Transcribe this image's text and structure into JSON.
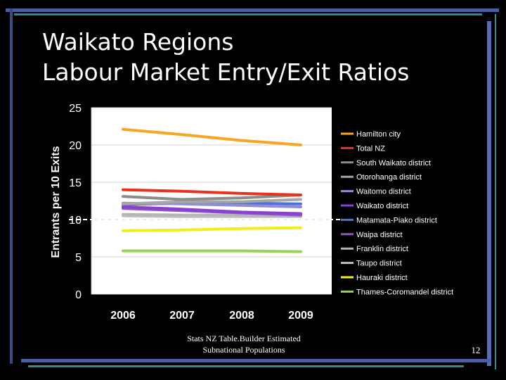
{
  "slide": {
    "title_line1": "Waikato Regions",
    "title_line2": "Labour Market Entry/Exit Ratios",
    "source_line1": "Stats NZ Table.Builder Estimated",
    "source_line2": "Subnational Populations",
    "page_number": "12"
  },
  "chart_data": {
    "type": "line",
    "title": "",
    "xlabel": "",
    "ylabel": "Entrants per 10 Exits",
    "categories": [
      "2006",
      "2007",
      "2008",
      "2009"
    ],
    "ylim": [
      0,
      25
    ],
    "yticks": [
      "0",
      "5",
      "10",
      "15",
      "20",
      "25"
    ],
    "grid": true,
    "legend_position": "right",
    "reference_line": {
      "value": 10,
      "style": "dashed",
      "color": "#ffffff"
    },
    "series": [
      {
        "name": "Hamilton city",
        "color": "#f6a623",
        "values": [
          22.1,
          21.4,
          20.6,
          20.0
        ]
      },
      {
        "name": "Total NZ",
        "color": "#e8321e",
        "values": [
          14.0,
          13.8,
          13.5,
          13.3
        ]
      },
      {
        "name": "South Waikato district",
        "color": "#8c8c8c",
        "values": [
          13.1,
          12.7,
          12.9,
          13.3
        ]
      },
      {
        "name": "Otorohanga district",
        "color": "#a6a6a6",
        "values": [
          12.1,
          12.4,
          12.4,
          12.7
        ]
      },
      {
        "name": "Waitomo district",
        "color": "#8f8fd0",
        "values": [
          12.2,
          12.1,
          11.9,
          11.7
        ]
      },
      {
        "name": "Waikato district",
        "color": "#8a3fd0",
        "values": [
          11.7,
          11.4,
          11.0,
          10.8
        ]
      },
      {
        "name": "Matamata-Piako district",
        "color": "#4f70d8",
        "values": [
          12.0,
          12.2,
          12.2,
          12.1
        ]
      },
      {
        "name": "Waipa district",
        "color": "#8a55c8",
        "values": [
          11.5,
          11.2,
          10.9,
          10.6
        ]
      },
      {
        "name": "Franklin district",
        "color": "#b5b5b5",
        "values": [
          10.7,
          10.6,
          10.6,
          10.5
        ]
      },
      {
        "name": "Taupo district",
        "color": "#c0c0c0",
        "values": [
          10.5,
          10.4,
          10.4,
          10.4
        ]
      },
      {
        "name": "Hauraki district",
        "color": "#f2ee1a",
        "values": [
          8.5,
          8.6,
          8.8,
          8.9
        ]
      },
      {
        "name": "Thames-Coromandel district",
        "color": "#9ccf5a",
        "values": [
          5.8,
          5.8,
          5.8,
          5.7
        ]
      }
    ]
  }
}
